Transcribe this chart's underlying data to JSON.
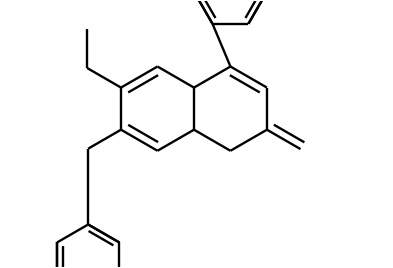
{
  "background": "#ffffff",
  "line_color": "#000000",
  "lw": 1.7,
  "R": 0.108,
  "bx": 0.4,
  "by": 0.405,
  "ph_R": 0.092,
  "mph_R": 0.092,
  "figsize": [
    3.93,
    2.68
  ],
  "dpi": 100,
  "xlim": [
    0,
    1
  ],
  "ylim": [
    0,
    0.68
  ]
}
